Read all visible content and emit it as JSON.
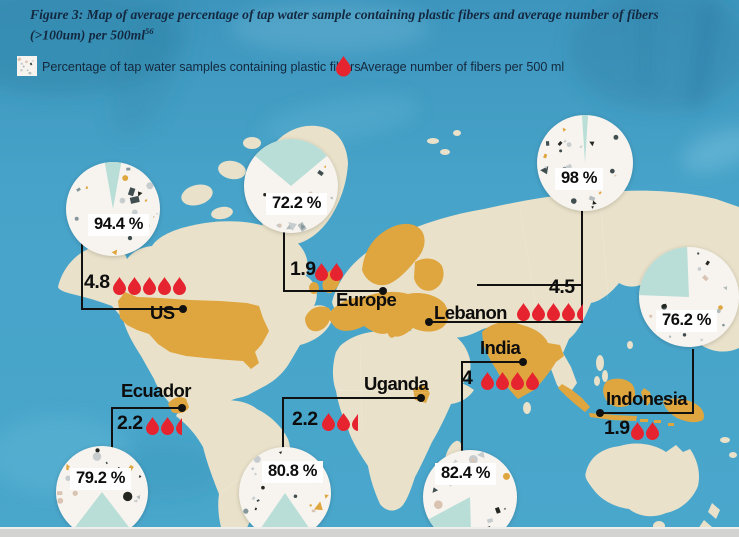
{
  "figure": {
    "title_line1": "Figure 3: Map of average percentage of tap water sample containing plastic fibers and average number of fibers",
    "title_line2": "(>100um) per 500ml",
    "title_sup": "56"
  },
  "legend": {
    "pct_item": "Percentage of tap water samples containing plastic fibers",
    "fibers_item": "Average number of fibers per 500 ml"
  },
  "chart_data": {
    "type": "map",
    "title": "Map of average percentage of tap water sample containing plastic fibers and average number of fibers (>100um) per 500ml",
    "metrics": {
      "pct": "Percentage of tap water samples containing plastic fibers",
      "fibers": "Average number of fibers per 500 ml"
    },
    "regions": [
      {
        "id": "us",
        "name": "US",
        "pct": 94.4,
        "pct_label": "94.4 %",
        "fibers": 4.8,
        "fibers_label": "4.8",
        "drops_full": 5,
        "drops_partial": 0
      },
      {
        "id": "europe",
        "name": "Europe",
        "pct": 72.2,
        "pct_label": "72.2 %",
        "fibers": 1.9,
        "fibers_label": "1.9",
        "drops_full": 2,
        "drops_partial": 0
      },
      {
        "id": "lebanon",
        "name": "Lebanon",
        "pct": 98,
        "pct_label": "98 %",
        "fibers": 4.5,
        "fibers_label": "4.5",
        "drops_full": 4,
        "drops_partial": 1
      },
      {
        "id": "india",
        "name": "India",
        "pct": 82.4,
        "pct_label": "82.4 %",
        "fibers": 4,
        "fibers_label": "4",
        "drops_full": 4,
        "drops_partial": 0
      },
      {
        "id": "indonesia",
        "name": "Indonesia",
        "pct": 76.2,
        "pct_label": "76.2 %",
        "fibers": 1.9,
        "fibers_label": "1.9",
        "drops_full": 2,
        "drops_partial": 0
      },
      {
        "id": "ecuador",
        "name": "Ecuador",
        "pct": 79.2,
        "pct_label": "79.2 %",
        "fibers": 2.2,
        "fibers_label": "2.2",
        "drops_full": 2,
        "drops_partial": 1
      },
      {
        "id": "uganda",
        "name": "Uganda",
        "pct": 80.8,
        "pct_label": "80.8 %",
        "fibers": 2.2,
        "fibers_label": "2.2",
        "drops_full": 2,
        "drops_partial": 1
      }
    ]
  },
  "colors": {
    "ocean": "#47a4ca",
    "land": "#e9e1c9",
    "highlight": "#dfa53e",
    "pie_bg": "#f7f4ef",
    "pie_slice": "#b9ded7",
    "drop_red": "#e62430",
    "title_navy": "#132840"
  }
}
